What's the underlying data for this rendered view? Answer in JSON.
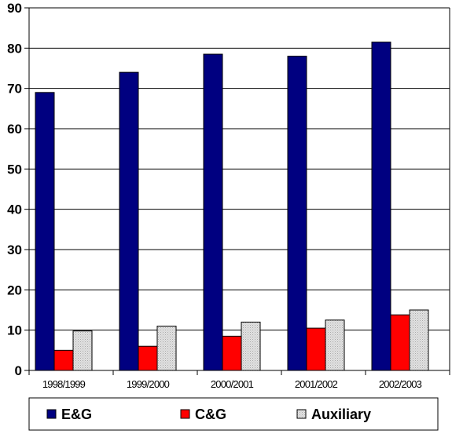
{
  "chart_data": {
    "type": "bar",
    "categories": [
      "1998/1999",
      "1999/2000",
      "2000/2001",
      "2001/2002",
      "2002/2003"
    ],
    "series": [
      {
        "name": "E&G",
        "values": [
          69,
          74,
          78.5,
          78,
          81.5
        ],
        "color": "#000080"
      },
      {
        "name": "C&G",
        "values": [
          5,
          6,
          8.5,
          10.5,
          13.8
        ],
        "color": "#ff0000"
      },
      {
        "name": "Auxiliary",
        "values": [
          9.8,
          11,
          12,
          12.5,
          15
        ],
        "color": "#c0c0c0"
      }
    ],
    "yticks": [
      "0",
      "10",
      "20",
      "30",
      "40",
      "50",
      "60",
      "70",
      "80",
      "90"
    ],
    "ylim": [
      0,
      90
    ],
    "title": "",
    "xlabel": "",
    "ylabel": "",
    "grid": true,
    "legend_position": "bottom"
  }
}
